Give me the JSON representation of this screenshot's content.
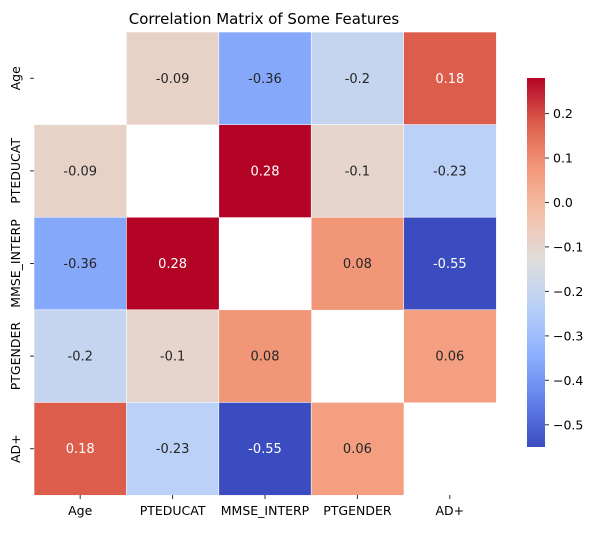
{
  "chart_data": {
    "type": "heatmap",
    "title": "Correlation Matrix of Some Features",
    "xlabel": "",
    "ylabel": "",
    "rows": [
      "Age",
      "PTEDUCAT",
      "MMSE_INTERP",
      "PTGENDER",
      "AD+"
    ],
    "columns": [
      "Age",
      "PTEDUCAT",
      "MMSE_INTERP",
      "PTGENDER",
      "AD+"
    ],
    "values": [
      [
        null,
        -0.09,
        -0.36,
        -0.2,
        0.18
      ],
      [
        -0.09,
        null,
        0.28,
        -0.1,
        -0.23
      ],
      [
        -0.36,
        0.28,
        null,
        0.08,
        -0.55
      ],
      [
        -0.2,
        -0.1,
        0.08,
        null,
        0.06
      ],
      [
        0.18,
        -0.23,
        -0.55,
        0.06,
        null
      ]
    ],
    "labels": [
      [
        "",
        "-0.09",
        "-0.36",
        "-0.2",
        "0.18"
      ],
      [
        "-0.09",
        "",
        "0.28",
        "-0.1",
        "-0.23"
      ],
      [
        "-0.36",
        "0.28",
        "",
        "0.08",
        "-0.55"
      ],
      [
        "-0.2",
        "-0.1",
        "0.08",
        "",
        "0.06"
      ],
      [
        "0.18",
        "-0.23",
        "-0.55",
        "0.06",
        ""
      ]
    ],
    "diagonal_masked": true,
    "colormap": "coolwarm",
    "colorbar": {
      "vmin": -0.55,
      "vmax": 0.28,
      "ticks": [
        0.2,
        0.1,
        0.0,
        -0.1,
        -0.2,
        -0.3,
        -0.4,
        -0.5
      ],
      "tick_labels": [
        "0.2",
        "0.1",
        "0.0",
        "−0.1",
        "−0.2",
        "−0.3",
        "−0.4",
        "−0.5"
      ],
      "placement": "right"
    },
    "grid": false
  }
}
